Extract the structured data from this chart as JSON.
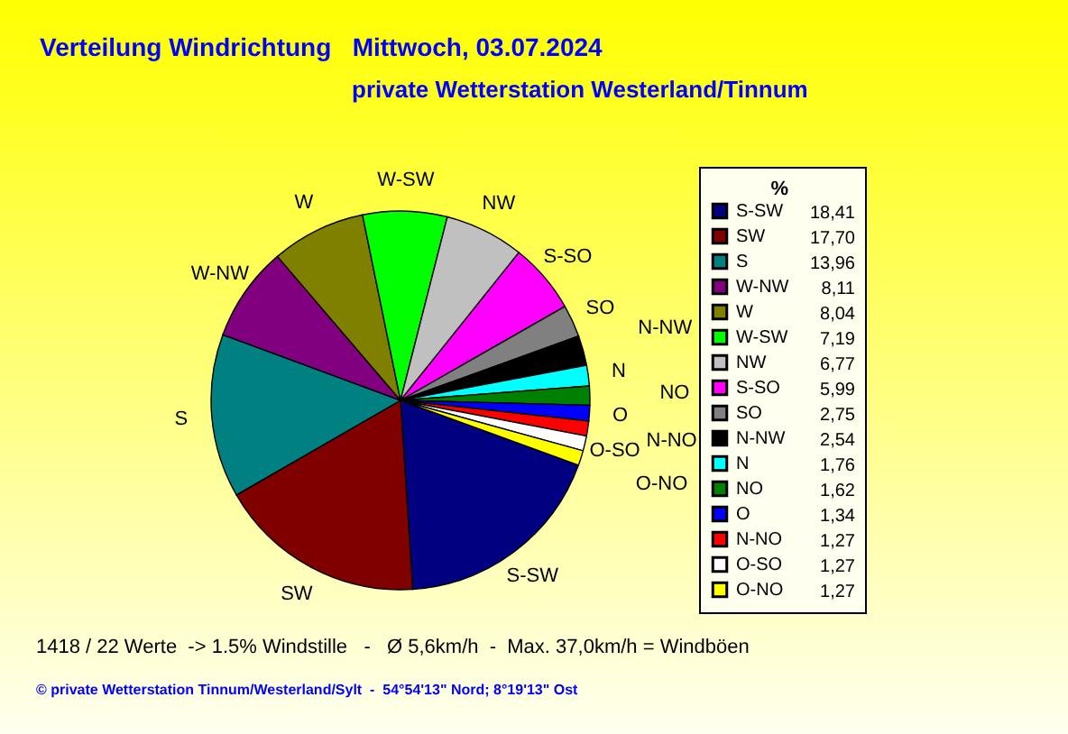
{
  "chart_data": {
    "type": "pie",
    "title": "Verteilung Windrichtung   Mittwoch, 03.07.2024",
    "subtitle": "private Wetterstation Westerland/Tinnum",
    "legend_title": "%",
    "legend": "right",
    "categories": [
      "S-SW",
      "SW",
      "S",
      "W-NW",
      "W",
      "W-SW",
      "NW",
      "S-SO",
      "SO",
      "N-NW",
      "N",
      "NO",
      "O",
      "N-NO",
      "O-SO",
      "O-NO"
    ],
    "values": [
      18.41,
      17.7,
      13.96,
      8.11,
      8.04,
      7.19,
      6.77,
      5.99,
      2.75,
      2.54,
      1.76,
      1.62,
      1.34,
      1.27,
      1.27,
      1.27
    ],
    "value_labels": [
      "18,41",
      "17,70",
      "13,96",
      "8,11",
      "8,04",
      "7,19",
      "6,77",
      "5,99",
      "2,75",
      "2,54",
      "1,76",
      "1,62",
      "1,34",
      "1,27",
      "1,27",
      "1,27"
    ],
    "colors": [
      "#000080",
      "#800000",
      "#008080",
      "#800080",
      "#808000",
      "#00ff00",
      "#c0c0c0",
      "#ff00ff",
      "#808080",
      "#000000",
      "#00ffff",
      "#008000",
      "#0000ff",
      "#ff0000",
      "#ffffff",
      "#ffff00"
    ],
    "annotations": [
      "1418 / 22 Werte  -> 1.5% Windstille   -   Ø 5,6km/h  -  Max. 37,0km/h = Windböen",
      "© private Wetterstation Tinnum/Westerland/Sylt  -  54°54'13\" Nord; 8°19'13\" Ost"
    ]
  }
}
